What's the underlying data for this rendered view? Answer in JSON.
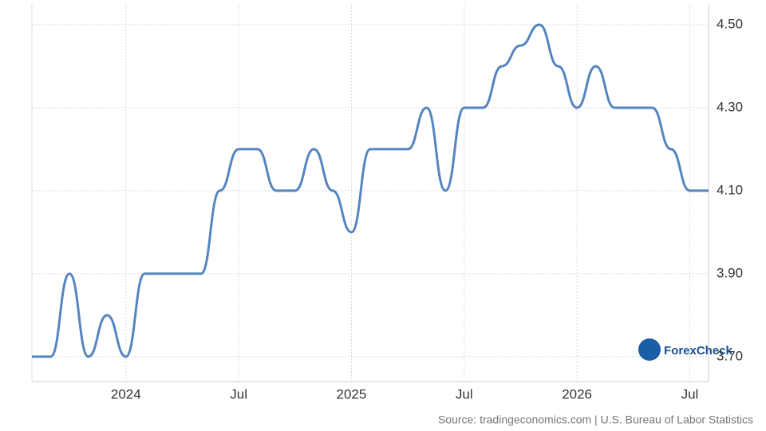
{
  "chart_data": {
    "type": "line",
    "categories": [
      null,
      null,
      null,
      null,
      null,
      "2024",
      null,
      null,
      null,
      null,
      null,
      "Jul",
      null,
      null,
      null,
      null,
      null,
      "2025",
      null,
      null,
      null,
      null,
      null,
      "Jul",
      null,
      null,
      null,
      null,
      null,
      "2026",
      null,
      null,
      null,
      null,
      null,
      "Jul",
      null
    ],
    "series": [
      {
        "color": "#5585c0",
        "values": [
          3.7,
          3.7,
          3.9,
          3.7,
          3.8,
          3.7,
          3.9,
          3.9,
          3.9,
          3.9,
          4.1,
          4.2,
          4.2,
          4.1,
          4.1,
          4.2,
          4.1,
          4.0,
          4.2,
          4.2,
          4.2,
          4.3,
          4.1,
          4.3,
          4.3,
          4.4,
          4.45,
          4.5,
          4.4,
          4.3,
          4.4,
          4.3,
          4.3,
          4.3,
          4.2,
          4.1,
          4.1
        ]
      }
    ],
    "ylim": [
      3.64,
      4.55
    ],
    "yticks": [
      {
        "value": 3.7,
        "label": "3.70"
      },
      {
        "value": 3.9,
        "label": "3.90"
      },
      {
        "value": 4.1,
        "label": "4.10"
      },
      {
        "value": 4.3,
        "label": "4.30"
      },
      {
        "value": 4.5,
        "label": "4.50"
      }
    ],
    "grid": true,
    "watermark": "ForexCheck",
    "source": "Source: tradingeconomics.com | U.S. Bureau of Labor Statistics"
  }
}
